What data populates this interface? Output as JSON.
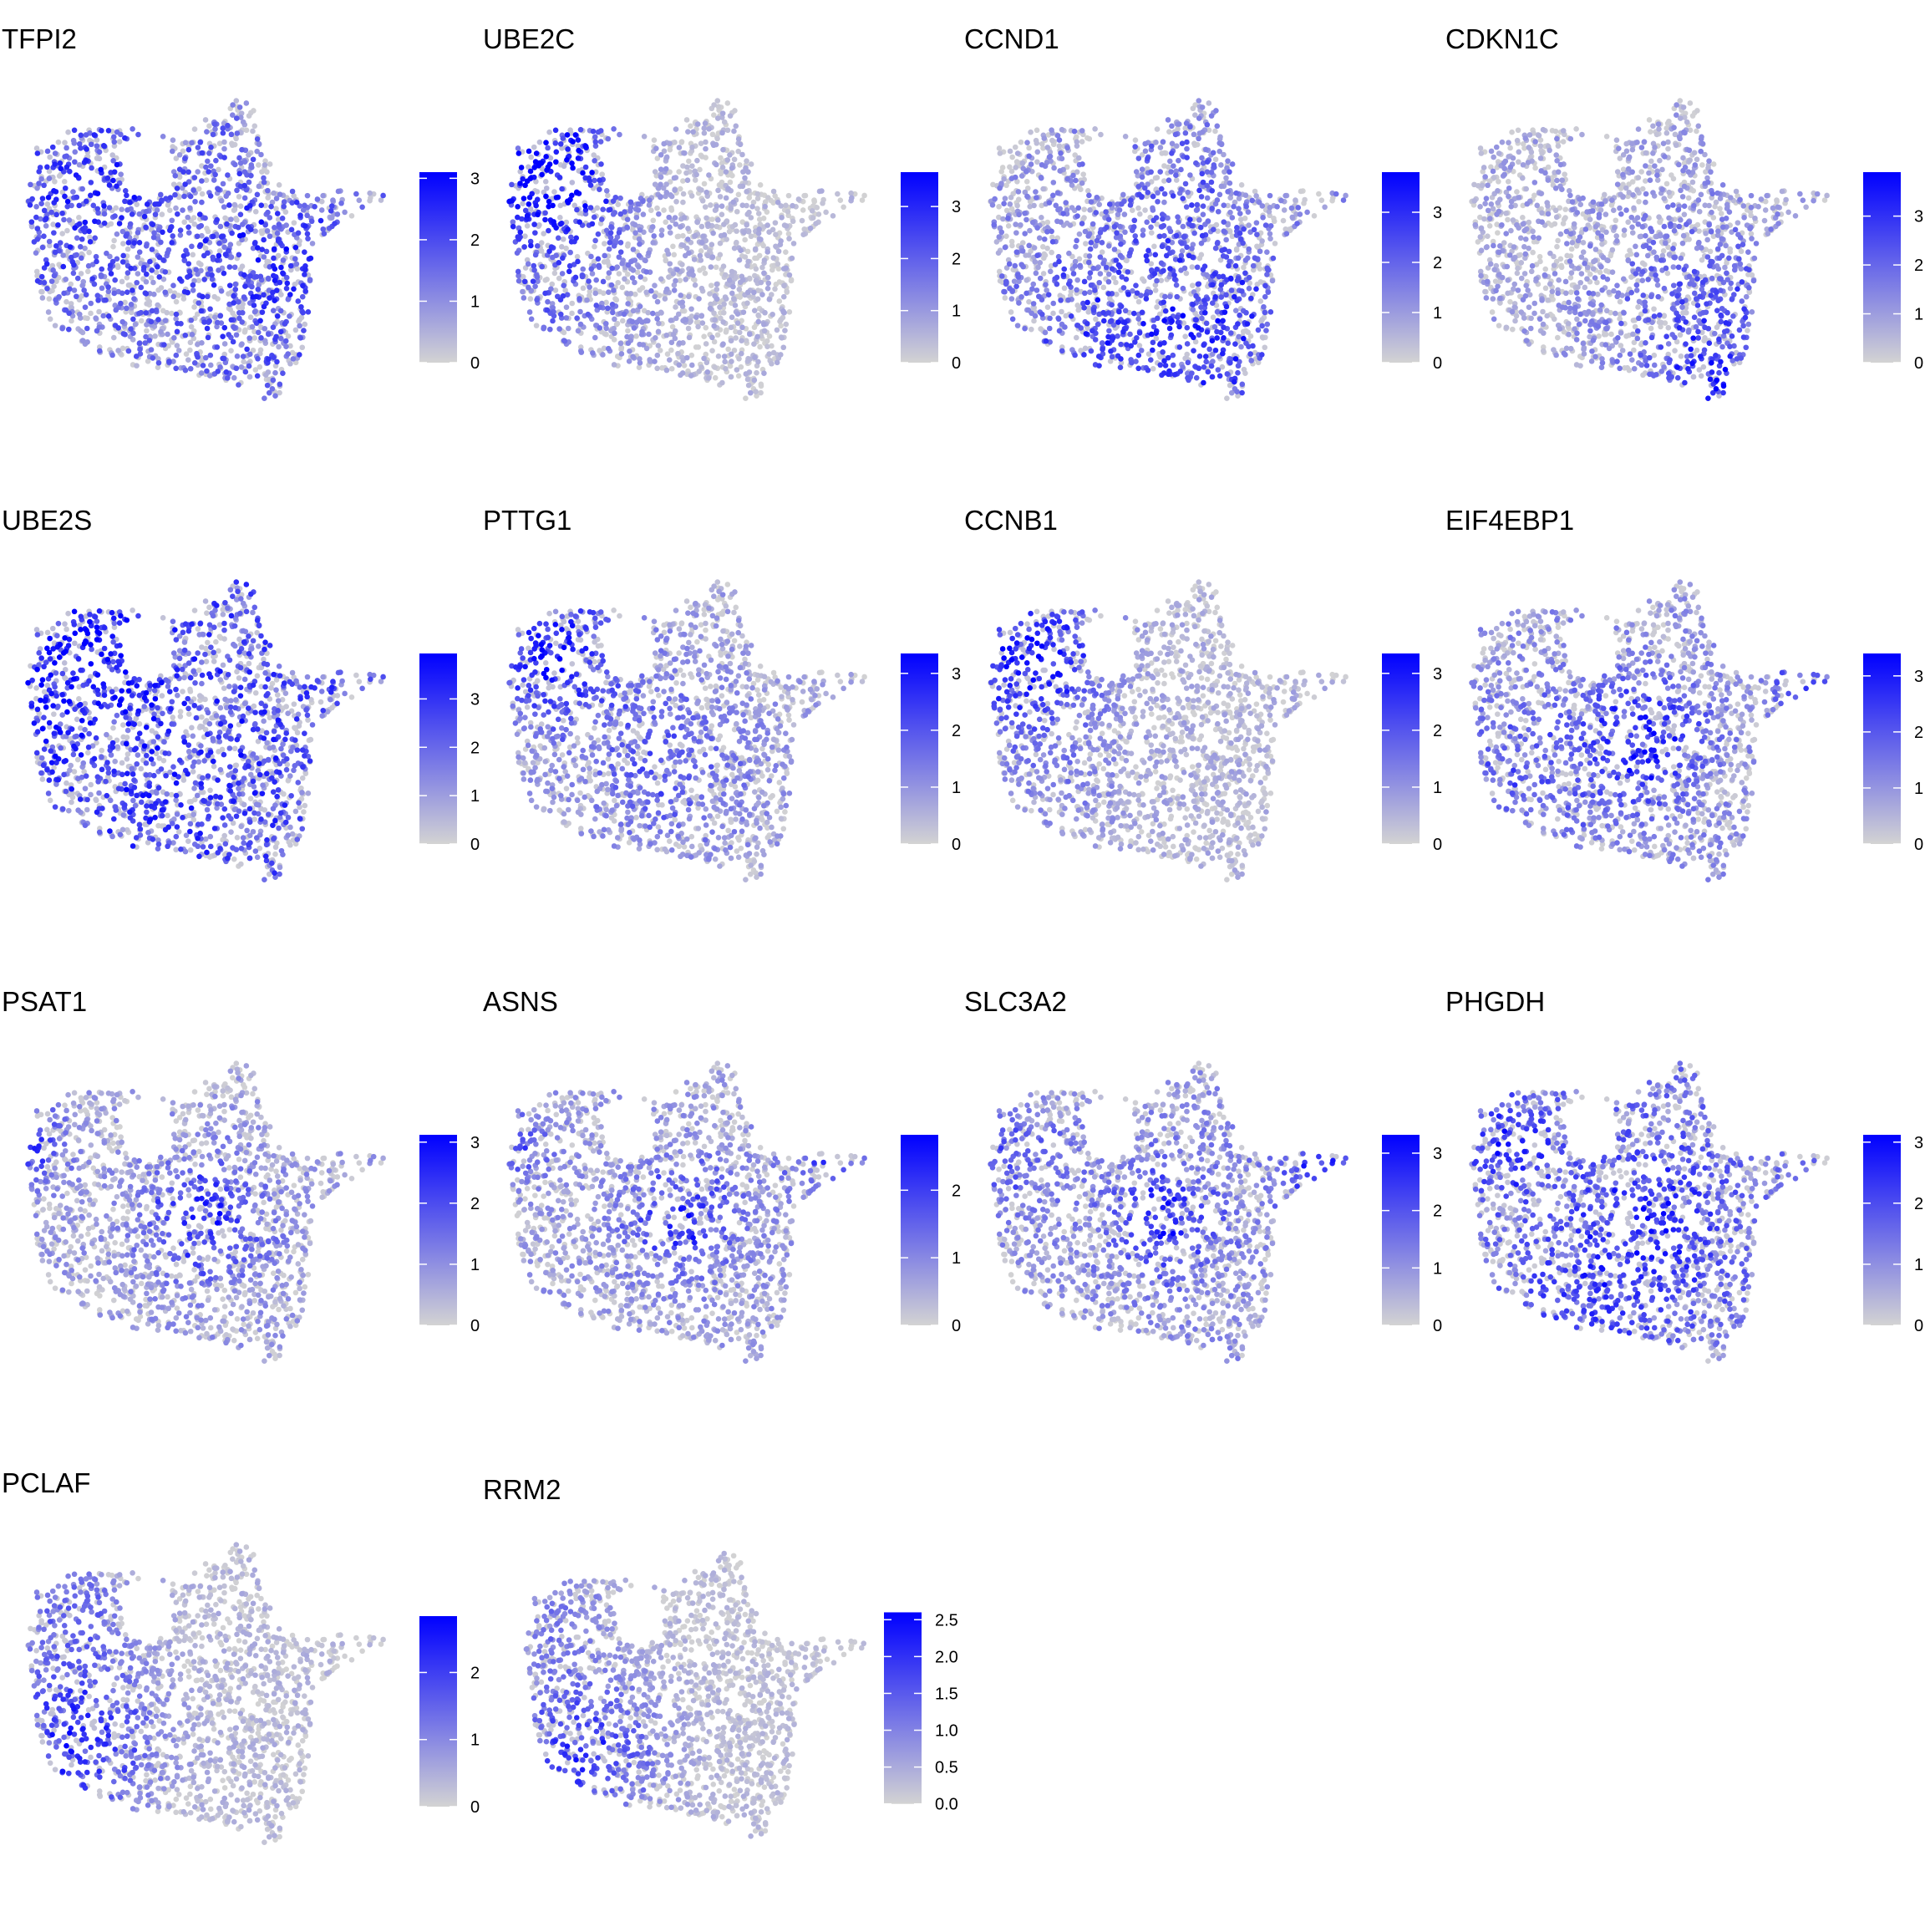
{
  "chart_data": [
    {
      "type": "scatter",
      "title": "TFPI2",
      "color_range": [
        0,
        3.1
      ],
      "legend_ticks": [
        "0",
        "1",
        "2",
        "3"
      ],
      "tick_values": [
        0,
        1,
        2,
        3
      ],
      "high_expression_region": "diffuse"
    },
    {
      "type": "scatter",
      "title": "UBE2C",
      "color_range": [
        0,
        3.66
      ],
      "legend_ticks": [
        "0",
        "1",
        "2",
        "3"
      ],
      "tick_values": [
        0,
        1,
        2,
        3
      ],
      "high_expression_region": "upper-left"
    },
    {
      "type": "scatter",
      "title": "CCND1",
      "color_range": [
        0,
        3.8
      ],
      "legend_ticks": [
        "0",
        "1",
        "2",
        "3"
      ],
      "tick_values": [
        0,
        1,
        2,
        3
      ],
      "high_expression_region": "lower"
    },
    {
      "type": "scatter",
      "title": "CDKN1C",
      "color_range": [
        0,
        3.9
      ],
      "legend_ticks": [
        "0",
        "1",
        "2",
        "3"
      ],
      "tick_values": [
        0,
        1,
        2,
        3
      ],
      "high_expression_region": "lower-right"
    },
    {
      "type": "scatter",
      "title": "UBE2S",
      "color_range": [
        0,
        3.94
      ],
      "legend_ticks": [
        "0",
        "1",
        "2",
        "3"
      ],
      "tick_values": [
        0,
        1,
        2,
        3
      ],
      "high_expression_region": "broad, strongest upper-left"
    },
    {
      "type": "scatter",
      "title": "PTTG1",
      "color_range": [
        0,
        3.35
      ],
      "legend_ticks": [
        "0",
        "1",
        "2",
        "3"
      ],
      "tick_values": [
        0,
        1,
        2,
        3
      ],
      "high_expression_region": "upper-left"
    },
    {
      "type": "scatter",
      "title": "CCNB1",
      "color_range": [
        0,
        3.35
      ],
      "legend_ticks": [
        "0",
        "1",
        "2",
        "3"
      ],
      "tick_values": [
        0,
        1,
        2,
        3
      ],
      "high_expression_region": "upper-left"
    },
    {
      "type": "scatter",
      "title": "EIF4EBP1",
      "color_range": [
        0,
        3.4
      ],
      "legend_ticks": [
        "0",
        "1",
        "2",
        "3"
      ],
      "tick_values": [
        0,
        1,
        2,
        3
      ],
      "high_expression_region": "center"
    },
    {
      "type": "scatter",
      "title": "PSAT1",
      "color_range": [
        0,
        3.12
      ],
      "legend_ticks": [
        "0",
        "1",
        "2",
        "3"
      ],
      "tick_values": [
        0,
        1,
        2,
        3
      ],
      "high_expression_region": "center"
    },
    {
      "type": "scatter",
      "title": "ASNS",
      "color_range": [
        0,
        2.82
      ],
      "legend_ticks": [
        "0",
        "1",
        "2"
      ],
      "tick_values": [
        0,
        1,
        2
      ],
      "high_expression_region": "center and right arm"
    },
    {
      "type": "scatter",
      "title": "SLC3A2",
      "color_range": [
        0,
        3.32
      ],
      "legend_ticks": [
        "0",
        "1",
        "2",
        "3"
      ],
      "tick_values": [
        0,
        1,
        2,
        3
      ],
      "high_expression_region": "center and right arm"
    },
    {
      "type": "scatter",
      "title": "PHGDH",
      "color_range": [
        0,
        3.12
      ],
      "legend_ticks": [
        "0",
        "1",
        "2",
        "3"
      ],
      "tick_values": [
        0,
        1,
        2,
        3
      ],
      "high_expression_region": "broad, center"
    },
    {
      "type": "scatter",
      "title": "PCLAF",
      "color_range": [
        0,
        2.84
      ],
      "legend_ticks": [
        "0",
        "1",
        "2"
      ],
      "tick_values": [
        0,
        1,
        2
      ],
      "high_expression_region": "left"
    },
    {
      "type": "scatter",
      "title": "RRM2",
      "color_range": [
        0,
        2.6
      ],
      "legend_ticks": [
        "0.0",
        "0.5",
        "1.0",
        "1.5",
        "2.0",
        "2.5"
      ],
      "tick_values": [
        0,
        0.5,
        1,
        1.5,
        2,
        2.5
      ],
      "high_expression_region": "left"
    }
  ],
  "colors": {
    "low": "#D3D3D3",
    "high": "#0000FF"
  }
}
